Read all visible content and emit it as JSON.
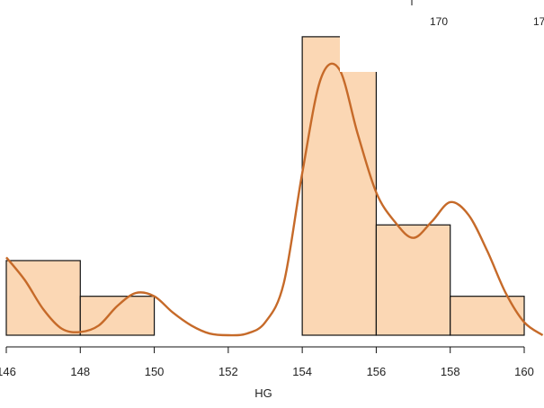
{
  "chart_data": {
    "type": "bar",
    "xlabel": "HG",
    "ylabel": "",
    "x_ticks": [
      146,
      148,
      150,
      152,
      154,
      156,
      158,
      160
    ],
    "xlim": [
      146,
      160.5
    ],
    "bins": [
      {
        "start": 146,
        "end": 148,
        "height": 0.23
      },
      {
        "start": 148,
        "end": 150,
        "height": 0.12
      },
      {
        "start": 154,
        "end": 156,
        "height": 0.92
      },
      {
        "start": 156,
        "end": 158,
        "height": 0.34
      },
      {
        "start": 158,
        "end": 160,
        "height": 0.12
      }
    ],
    "density_curve": {
      "x": [
        146,
        146.5,
        147,
        147.5,
        148,
        148.5,
        149,
        149.5,
        150,
        150.5,
        151,
        151.5,
        152,
        152.5,
        153,
        153.5,
        154,
        154.5,
        155,
        155.5,
        156,
        156.5,
        157,
        157.5,
        158,
        158.5,
        159,
        159.5,
        160,
        160.5
      ],
      "y": [
        0.24,
        0.17,
        0.08,
        0.02,
        0.01,
        0.03,
        0.09,
        0.13,
        0.12,
        0.07,
        0.03,
        0.005,
        0.0,
        0.005,
        0.04,
        0.16,
        0.5,
        0.79,
        0.82,
        0.62,
        0.44,
        0.35,
        0.3,
        0.35,
        0.41,
        0.37,
        0.26,
        0.13,
        0.04,
        0.0
      ]
    },
    "colors": {
      "bar_fill": "#fbd7b4",
      "bar_stroke": "#111111",
      "curve": "#c66a29"
    },
    "inset_tick_labels": [
      "170",
      "17"
    ]
  }
}
